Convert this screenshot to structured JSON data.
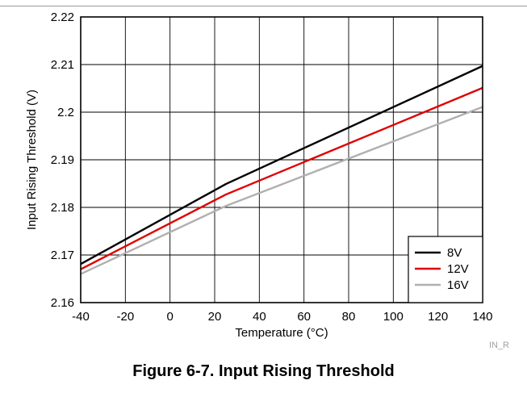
{
  "chart_data": {
    "type": "line",
    "title": "",
    "xlabel": "Temperature (°C)",
    "ylabel": "Input Rising Threshold (V)",
    "xlim": [
      -40,
      140
    ],
    "ylim": [
      2.16,
      2.22
    ],
    "xticks": [
      "-40",
      "-20",
      "0",
      "20",
      "40",
      "60",
      "80",
      "100",
      "120",
      "140"
    ],
    "yticks": [
      "2.16",
      "2.17",
      "2.18",
      "2.19",
      "2.2",
      "2.21",
      "2.22"
    ],
    "grid": true,
    "legend_position": "bottom-right",
    "series": [
      {
        "name": "8V",
        "color": "#000000",
        "x": [
          -40,
          25,
          140
        ],
        "y": [
          2.1681,
          2.1849,
          2.2097
        ]
      },
      {
        "name": "12V",
        "color": "#e00000",
        "x": [
          -40,
          25,
          140
        ],
        "y": [
          2.167,
          2.1827,
          2.2051
        ]
      },
      {
        "name": "16V",
        "color": "#b0b0b0",
        "x": [
          -40,
          25,
          140
        ],
        "y": [
          2.166,
          2.1803,
          2.2011
        ]
      }
    ],
    "watermark": "IN_R"
  },
  "caption": "Figure 6-7. Input Rising Threshold"
}
